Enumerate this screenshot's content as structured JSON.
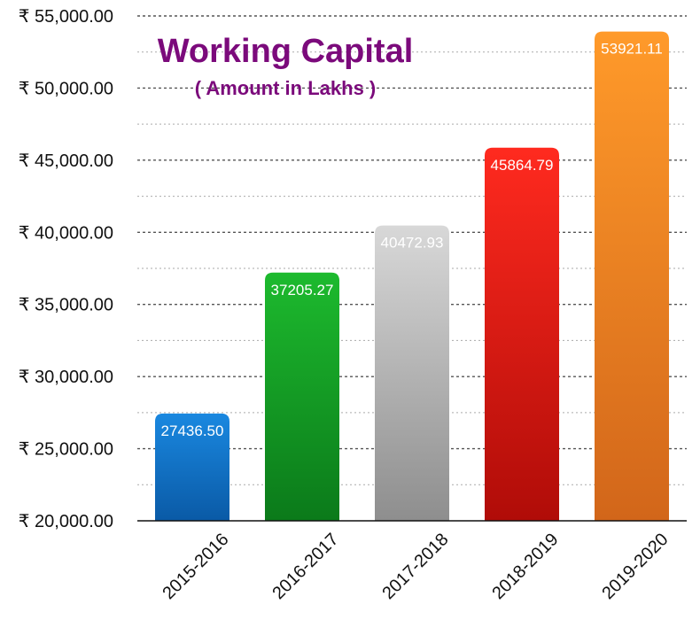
{
  "chart_data": {
    "type": "bar",
    "title": "Working Capital",
    "subtitle": "( Amount in Lakhs )",
    "categories": [
      "2015-2016",
      "2016-2017",
      "2017-2018",
      "2018-2019",
      "2019-2020"
    ],
    "values": [
      27436.5,
      37205.27,
      40472.93,
      45864.79,
      53921.11
    ],
    "value_labels": [
      "27436.50",
      "37205.27",
      "40472.93",
      "45864.79",
      "53921.11"
    ],
    "y_ticks": [
      20000,
      25000,
      30000,
      35000,
      40000,
      45000,
      50000,
      55000
    ],
    "y_tick_labels": [
      "₹ 20,000.00",
      "₹ 25,000.00",
      "₹ 30,000.00",
      "₹ 35,000.00",
      "₹ 40,000.00",
      "₹ 45,000.00",
      "₹ 50,000.00",
      "₹ 55,000.00"
    ],
    "ylim": [
      20000,
      55000
    ],
    "grid": true,
    "colors": {
      "title": "#7b0a7b",
      "bars": [
        [
          "#1a88e0",
          "#0a5aa6"
        ],
        [
          "#1dba2e",
          "#0b7a1a"
        ],
        [
          "#d8d8d8",
          "#8e8e8e"
        ],
        [
          "#ff2a1f",
          "#b00c08"
        ],
        [
          "#ff9a2a",
          "#d2661a"
        ]
      ]
    }
  }
}
